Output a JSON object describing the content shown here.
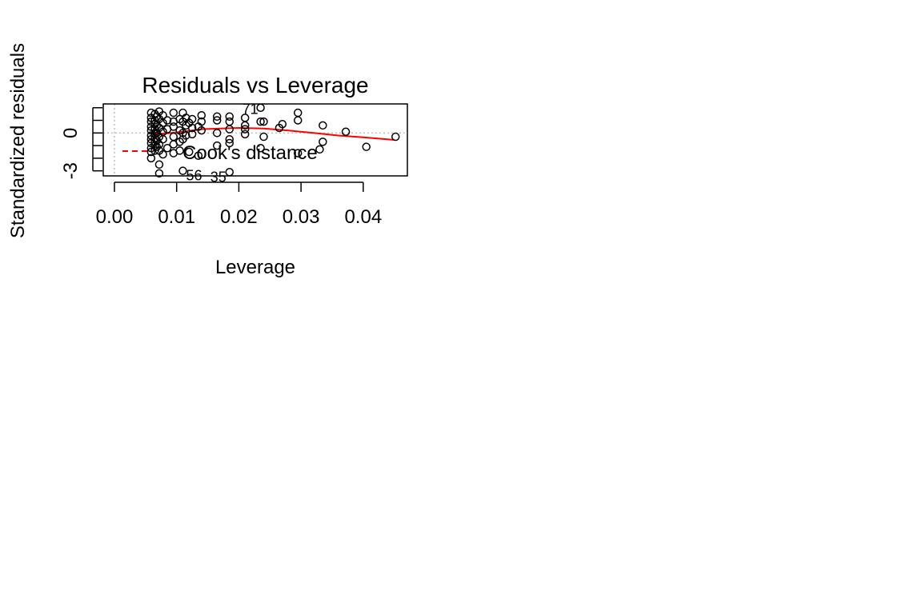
{
  "chart_data": {
    "type": "scatter",
    "title": "Residuals vs Leverage",
    "xlabel": "Leverage",
    "ylabel": "Standardized residuals",
    "xlim": [
      -0.0018,
      0.0471
    ],
    "ylim": [
      -3.4,
      2.3
    ],
    "xticks": [
      0.0,
      0.01,
      0.02,
      0.03,
      0.04
    ],
    "xtick_labels": [
      "0.00",
      "0.01",
      "0.02",
      "0.03",
      "0.04"
    ],
    "yticks": [
      -3,
      -2,
      -1,
      0,
      1,
      2
    ],
    "ytick_labels": [
      "-3",
      "",
      "",
      "0",
      "",
      ""
    ],
    "legend": {
      "label": "Cook's distance",
      "placement": "bottom-left",
      "line_style": "dashed",
      "color": "#ff0000"
    },
    "reference_lines": {
      "x": 0,
      "y": 0,
      "color": "#bebebe",
      "style": "dotted"
    },
    "smooth_color": "#ff0000",
    "smooth": {
      "x": [
        0.0057,
        0.008,
        0.011,
        0.014,
        0.017,
        0.02,
        0.024,
        0.028,
        0.032,
        0.036,
        0.04,
        0.045
      ],
      "y": [
        -0.05,
        -0.05,
        0.1,
        0.3,
        0.35,
        0.4,
        0.35,
        0.2,
        0.0,
        -0.2,
        -0.35,
        -0.55
      ]
    },
    "points": [
      {
        "x": 0.0059,
        "y": 1.6
      },
      {
        "x": 0.0059,
        "y": 1.2
      },
      {
        "x": 0.0059,
        "y": 0.9
      },
      {
        "x": 0.0059,
        "y": 0.5
      },
      {
        "x": 0.0059,
        "y": 0.2
      },
      {
        "x": 0.0059,
        "y": -0.2
      },
      {
        "x": 0.0059,
        "y": -0.5
      },
      {
        "x": 0.0059,
        "y": -0.8
      },
      {
        "x": 0.0059,
        "y": -1.2
      },
      {
        "x": 0.0059,
        "y": -1.5
      },
      {
        "x": 0.0059,
        "y": -2.0
      },
      {
        "x": 0.0065,
        "y": 1.5
      },
      {
        "x": 0.0065,
        "y": 1.0
      },
      {
        "x": 0.0065,
        "y": 0.7
      },
      {
        "x": 0.0065,
        "y": 0.3
      },
      {
        "x": 0.0065,
        "y": -0.1
      },
      {
        "x": 0.0065,
        "y": -0.4
      },
      {
        "x": 0.0065,
        "y": -0.7
      },
      {
        "x": 0.0065,
        "y": -1.0
      },
      {
        "x": 0.0065,
        "y": -1.4
      },
      {
        "x": 0.0068,
        "y": 1.3
      },
      {
        "x": 0.0068,
        "y": 0.6
      },
      {
        "x": 0.0068,
        "y": 0.0
      },
      {
        "x": 0.0068,
        "y": -0.6
      },
      {
        "x": 0.0068,
        "y": -1.1
      },
      {
        "x": 0.0072,
        "y": 1.7
      },
      {
        "x": 0.0072,
        "y": 1.1
      },
      {
        "x": 0.0072,
        "y": 0.4
      },
      {
        "x": 0.0072,
        "y": -0.3
      },
      {
        "x": 0.0072,
        "y": -0.9
      },
      {
        "x": 0.0072,
        "y": -1.4
      },
      {
        "x": 0.0072,
        "y": -2.5
      },
      {
        "x": 0.0072,
        "y": -3.2
      },
      {
        "x": 0.0078,
        "y": 1.4
      },
      {
        "x": 0.0078,
        "y": 0.8
      },
      {
        "x": 0.0078,
        "y": 0.1
      },
      {
        "x": 0.0078,
        "y": -0.5
      },
      {
        "x": 0.0078,
        "y": -1.7
      },
      {
        "x": 0.0085,
        "y": 1.0
      },
      {
        "x": 0.0085,
        "y": 0.3
      },
      {
        "x": 0.0085,
        "y": -1.2
      },
      {
        "x": 0.0095,
        "y": 1.6
      },
      {
        "x": 0.0095,
        "y": 0.9
      },
      {
        "x": 0.0095,
        "y": 0.5
      },
      {
        "x": 0.0095,
        "y": -0.3
      },
      {
        "x": 0.0095,
        "y": -0.9
      },
      {
        "x": 0.0095,
        "y": -1.6
      },
      {
        "x": 0.0105,
        "y": 1.1
      },
      {
        "x": 0.0105,
        "y": 0.2
      },
      {
        "x": 0.0105,
        "y": -0.7
      },
      {
        "x": 0.0105,
        "y": -1.4
      },
      {
        "x": 0.011,
        "y": 1.6
      },
      {
        "x": 0.011,
        "y": 0.9
      },
      {
        "x": 0.011,
        "y": 0.0
      },
      {
        "x": 0.011,
        "y": -0.5
      },
      {
        "x": 0.011,
        "y": -3.0
      },
      {
        "x": 0.0115,
        "y": 1.2
      },
      {
        "x": 0.0115,
        "y": 0.6
      },
      {
        "x": 0.0115,
        "y": -0.2
      },
      {
        "x": 0.012,
        "y": 0.8
      },
      {
        "x": 0.012,
        "y": -1.5
      },
      {
        "x": 0.0125,
        "y": 1.1
      },
      {
        "x": 0.0125,
        "y": 0.4
      },
      {
        "x": 0.0125,
        "y": -0.1
      },
      {
        "x": 0.0135,
        "y": 0.5
      },
      {
        "x": 0.0135,
        "y": -1.8
      },
      {
        "x": 0.014,
        "y": 1.4
      },
      {
        "x": 0.014,
        "y": 0.9
      },
      {
        "x": 0.014,
        "y": 0.2
      },
      {
        "x": 0.0165,
        "y": 1.3
      },
      {
        "x": 0.0165,
        "y": 1.0
      },
      {
        "x": 0.0165,
        "y": 0.0
      },
      {
        "x": 0.0165,
        "y": -1.0
      },
      {
        "x": 0.0185,
        "y": 1.3
      },
      {
        "x": 0.0185,
        "y": 0.9
      },
      {
        "x": 0.0185,
        "y": 0.3
      },
      {
        "x": 0.0185,
        "y": -0.5
      },
      {
        "x": 0.0185,
        "y": -0.8
      },
      {
        "x": 0.0185,
        "y": -3.1
      },
      {
        "x": 0.021,
        "y": 1.2
      },
      {
        "x": 0.021,
        "y": 0.6
      },
      {
        "x": 0.021,
        "y": 0.3
      },
      {
        "x": 0.021,
        "y": -0.1
      },
      {
        "x": 0.0235,
        "y": 2.0
      },
      {
        "x": 0.0235,
        "y": 0.9
      },
      {
        "x": 0.0235,
        "y": -1.2
      },
      {
        "x": 0.024,
        "y": 0.9
      },
      {
        "x": 0.024,
        "y": -0.3
      },
      {
        "x": 0.0265,
        "y": 0.4
      },
      {
        "x": 0.027,
        "y": 0.7
      },
      {
        "x": 0.0295,
        "y": 1.6
      },
      {
        "x": 0.0295,
        "y": 1.0
      },
      {
        "x": 0.0295,
        "y": -1.6
      },
      {
        "x": 0.033,
        "y": -1.3
      },
      {
        "x": 0.0335,
        "y": -0.7
      },
      {
        "x": 0.0335,
        "y": 0.6
      },
      {
        "x": 0.0372,
        "y": 0.1
      },
      {
        "x": 0.0405,
        "y": -1.1
      },
      {
        "x": 0.0452,
        "y": -0.3
      }
    ],
    "point_labels": [
      {
        "text": "71",
        "x": 0.0235,
        "y": 2.0
      },
      {
        "text": "56",
        "x": 0.011,
        "y": -3.0
      },
      {
        "text": "35",
        "x": 0.0185,
        "y": -3.1
      }
    ]
  }
}
